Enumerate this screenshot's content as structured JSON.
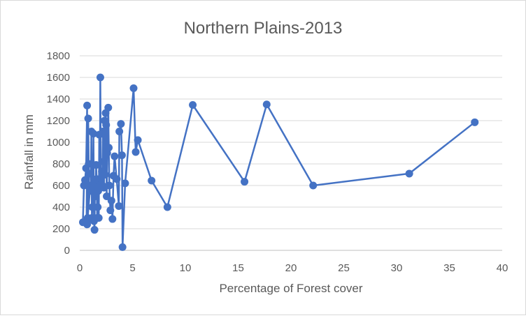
{
  "chart_data": {
    "type": "line",
    "title": "Northern Plains-2013",
    "xlabel": "Percentage of Forest cover",
    "ylabel": "Rainfall in mm",
    "xlim": [
      0,
      40
    ],
    "ylim": [
      0,
      1800
    ],
    "xticks": [
      "0",
      "5",
      "10",
      "15",
      "20",
      "25",
      "30",
      "35",
      "40"
    ],
    "yticks": [
      "0",
      "200",
      "400",
      "600",
      "800",
      "1000",
      "1200",
      "1400",
      "1600",
      "1800"
    ],
    "grid": "horizontal",
    "legend": "none",
    "markers": true,
    "series": [
      {
        "color": "#4472c4",
        "points": [
          [
            0.3,
            260
          ],
          [
            0.4,
            600
          ],
          [
            0.5,
            650
          ],
          [
            0.6,
            760
          ],
          [
            0.7,
            1340
          ],
          [
            0.65,
            260
          ],
          [
            0.75,
            300
          ],
          [
            0.8,
            1220
          ],
          [
            0.85,
            800
          ],
          [
            0.9,
            710
          ],
          [
            0.7,
            240
          ],
          [
            1.0,
            600
          ],
          [
            1.05,
            550
          ],
          [
            1.1,
            1100
          ],
          [
            1.15,
            300
          ],
          [
            1.2,
            400
          ],
          [
            1.25,
            600
          ],
          [
            1.3,
            1080
          ],
          [
            1.35,
            270
          ],
          [
            1.4,
            190
          ],
          [
            1.45,
            650
          ],
          [
            1.5,
            500
          ],
          [
            1.55,
            790
          ],
          [
            1.6,
            660
          ],
          [
            1.65,
            300
          ],
          [
            1.7,
            400
          ],
          [
            1.75,
            550
          ],
          [
            1.8,
            300
          ],
          [
            1.85,
            1070
          ],
          [
            1.9,
            600
          ],
          [
            1.95,
            1600
          ],
          [
            2.0,
            660
          ],
          [
            2.1,
            730
          ],
          [
            2.15,
            600
          ],
          [
            2.2,
            1100
          ],
          [
            2.25,
            820
          ],
          [
            2.3,
            580
          ],
          [
            2.35,
            1200
          ],
          [
            2.4,
            700
          ],
          [
            2.45,
            1270
          ],
          [
            2.5,
            1160
          ],
          [
            2.55,
            500
          ],
          [
            2.6,
            900
          ],
          [
            2.7,
            1320
          ],
          [
            2.75,
            950
          ],
          [
            2.8,
            600
          ],
          [
            2.9,
            370
          ],
          [
            3.0,
            460
          ],
          [
            3.1,
            290
          ],
          [
            3.2,
            690
          ],
          [
            3.3,
            870
          ],
          [
            3.5,
            660
          ],
          [
            3.7,
            410
          ],
          [
            3.75,
            1100
          ],
          [
            3.9,
            1170
          ],
          [
            4.0,
            880
          ],
          [
            4.05,
            30
          ],
          [
            4.3,
            620
          ],
          [
            5.1,
            1500
          ],
          [
            5.3,
            910
          ],
          [
            5.5,
            1020
          ],
          [
            6.8,
            645
          ],
          [
            8.3,
            400
          ],
          [
            10.7,
            1345
          ],
          [
            15.6,
            635
          ],
          [
            17.7,
            1350
          ],
          [
            22.1,
            600
          ],
          [
            31.2,
            710
          ],
          [
            37.4,
            1185
          ]
        ]
      }
    ]
  }
}
